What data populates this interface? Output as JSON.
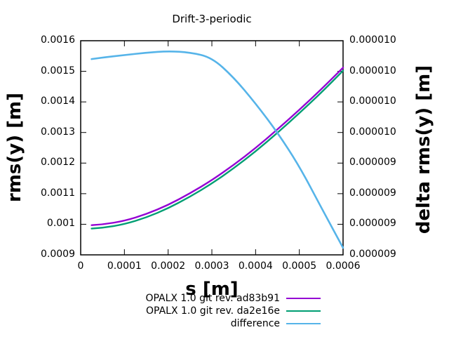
{
  "chart": {
    "title": "Drift-3-periodic",
    "xlabel": "s [m]",
    "ylabel_left": "rms(y) [m]",
    "ylabel_right": "delta rms(y) [m]"
  },
  "chart_data": {
    "type": "line",
    "title": "Drift-3-periodic",
    "xlabel": "s [m]",
    "ylabel": "rms(y) [m]",
    "y2label": "delta rms(y) [m]",
    "grid": false,
    "legend_position": "below-right",
    "xlim": [
      0,
      0.0006
    ],
    "ylim": [
      0.0009,
      0.0016
    ],
    "y2lim": [
      9.2e-06,
      9.9e-06
    ],
    "x_tick_labels": [
      "0",
      "0.0001",
      "0.0002",
      "0.0003",
      "0.0004",
      "0.0005",
      "0.0006"
    ],
    "y_tick_labels": [
      "0.0016",
      "0.0015",
      "0.0014",
      "0.0013",
      "0.0012",
      "0.0011",
      "0.001",
      "0.0009"
    ],
    "y2_tick_labels": [
      "0.000010",
      "0.000010",
      "0.000010",
      "0.000010",
      "0.000009",
      "0.000009",
      "0.000009",
      "0.000009"
    ],
    "x": [
      2.5e-05,
      5e-05,
      0.0001,
      0.00015,
      0.0002,
      0.00025,
      0.0003,
      0.00035,
      0.0004,
      0.00045,
      0.0005,
      0.00055,
      0.0006
    ],
    "series": [
      {
        "name": "OPALX 1.0 git rev. ad83b91",
        "color": "#9400d3",
        "axis": "left",
        "values": [
          0.000997,
          0.000999,
          0.001011,
          0.001033,
          0.001063,
          0.001101,
          0.001144,
          0.001194,
          0.001249,
          0.00131,
          0.001374,
          0.001441,
          0.001512
        ]
      },
      {
        "name": "OPALX 1.0 git rev. da2e16e",
        "color": "#009e73",
        "axis": "left",
        "values": [
          0.000986,
          0.000988,
          0.001,
          0.001022,
          0.001052,
          0.00109,
          0.001133,
          0.001183,
          0.001238,
          0.001299,
          0.001363,
          0.00143,
          0.001502
        ]
      },
      {
        "name": "difference",
        "color": "#56b4e9",
        "axis": "right",
        "values": [
          9.84e-06,
          9.845e-06,
          9.853e-06,
          9.861e-06,
          9.866e-06,
          9.862e-06,
          9.845e-06,
          9.78e-06,
          9.695e-06,
          9.6e-06,
          9.49e-06,
          9.355e-06,
          9.223e-06
        ]
      }
    ]
  }
}
